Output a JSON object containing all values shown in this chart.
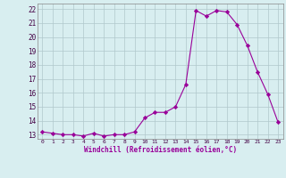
{
  "x": [
    0,
    1,
    2,
    3,
    4,
    5,
    6,
    7,
    8,
    9,
    10,
    11,
    12,
    13,
    14,
    15,
    16,
    17,
    18,
    19,
    20,
    21,
    22,
    23
  ],
  "y": [
    13.2,
    13.1,
    13.0,
    13.0,
    12.9,
    13.1,
    12.9,
    13.0,
    13.0,
    13.2,
    14.2,
    14.6,
    14.6,
    15.0,
    16.6,
    21.9,
    21.5,
    21.9,
    21.8,
    20.9,
    19.4,
    17.5,
    15.9,
    13.9
  ],
  "line_color": "#990099",
  "marker": "D",
  "marker_size": 2.2,
  "bg_color": "#d8eef0",
  "grid_color": "#b0c8cc",
  "xlabel": "Windchill (Refroidissement éolien,°C)",
  "yticks": [
    13,
    14,
    15,
    16,
    17,
    18,
    19,
    20,
    21,
    22
  ],
  "xticks": [
    0,
    1,
    2,
    3,
    4,
    5,
    6,
    7,
    8,
    9,
    10,
    11,
    12,
    13,
    14,
    15,
    16,
    17,
    18,
    19,
    20,
    21,
    22,
    23
  ],
  "xlim": [
    -0.5,
    23.5
  ],
  "ylim": [
    12.7,
    22.4
  ]
}
